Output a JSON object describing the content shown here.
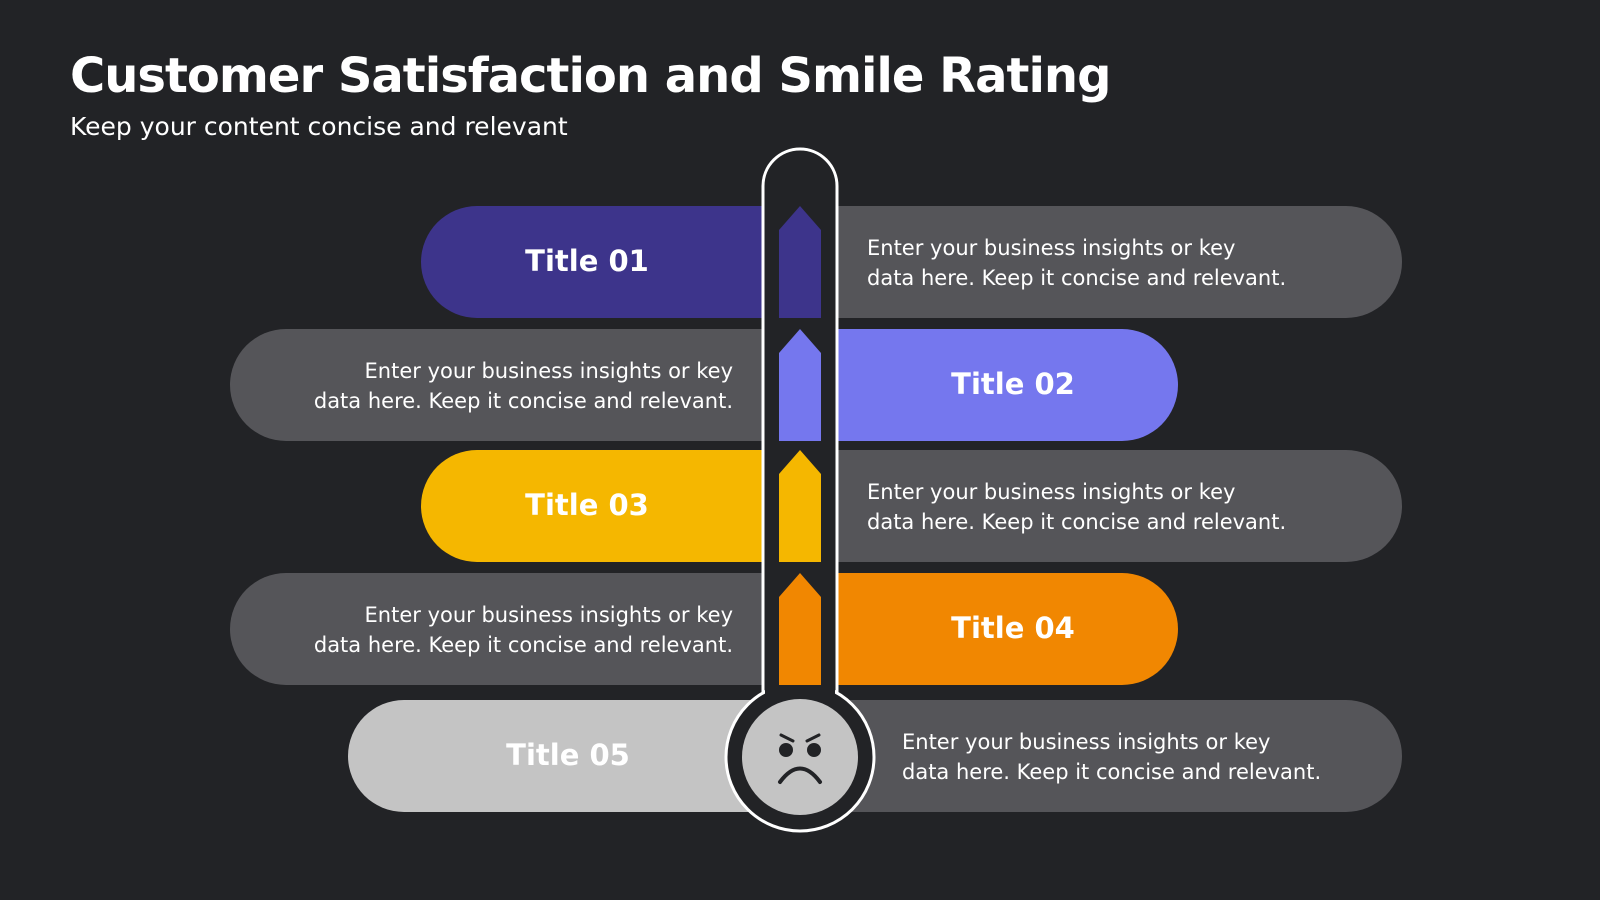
{
  "header": {
    "title": "Customer Satisfaction and Smile Rating",
    "subtitle": "Keep your content concise and relevant"
  },
  "items": [
    {
      "title": "Title 01",
      "lines": [
        "Enter your business insights or key",
        "data here. Keep it concise and relevant."
      ]
    },
    {
      "title": "Title 02",
      "lines": [
        "Enter your business insights or key",
        "data here. Keep it concise and relevant."
      ]
    },
    {
      "title": "Title 03",
      "lines": [
        "Enter your business insights or key",
        "data here. Keep it concise and relevant."
      ]
    },
    {
      "title": "Title 04",
      "lines": [
        "Enter your business insights or key",
        "data here. Keep it concise and relevant."
      ]
    },
    {
      "title": "Title 05",
      "lines": [
        "Enter your business insights or key",
        "data here. Keep it concise and relevant."
      ]
    }
  ]
}
